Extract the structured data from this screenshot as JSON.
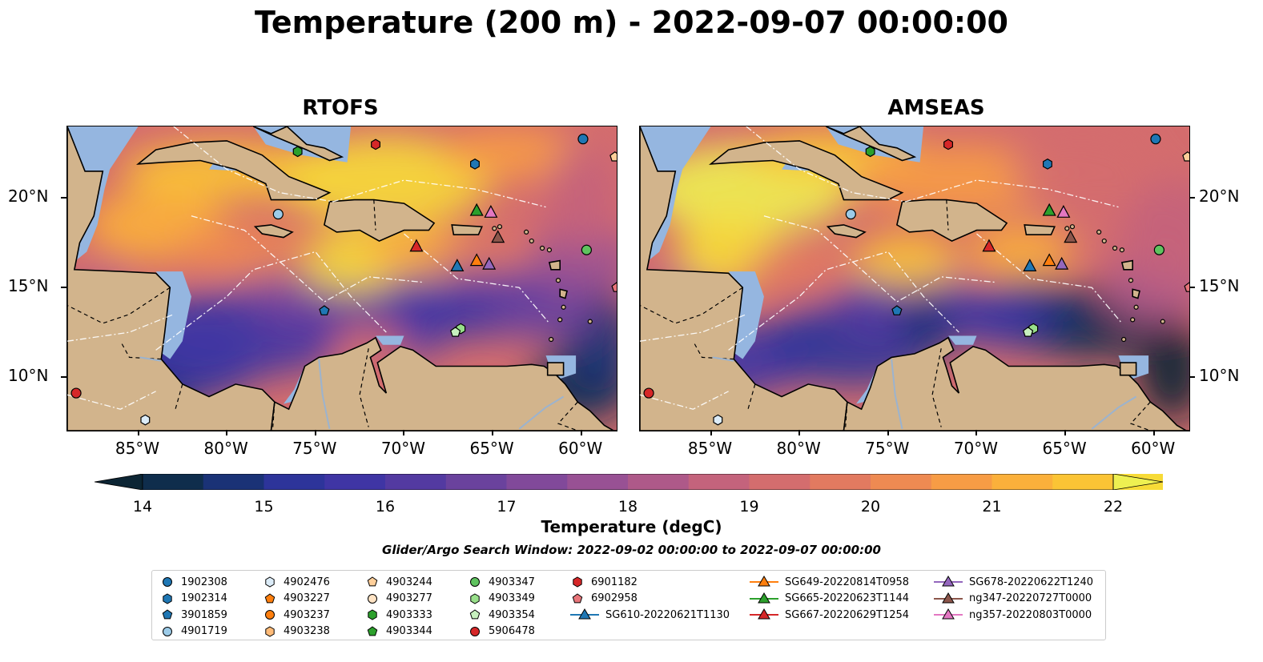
{
  "title": "Temperature (200 m) - 2022-09-07 00:00:00",
  "panels": [
    {
      "title": "RTOFS"
    },
    {
      "title": "AMSEAS"
    }
  ],
  "lon_ticks": [
    "85°W",
    "80°W",
    "75°W",
    "70°W",
    "65°W",
    "60°W"
  ],
  "lat_ticks": [
    "20°N",
    "15°N",
    "10°N"
  ],
  "extent": {
    "lon": [
      -89,
      -58
    ],
    "lat": [
      7,
      24
    ]
  },
  "colorbar": {
    "label": "Temperature (degC)",
    "ticks": [
      "14",
      "15",
      "16",
      "17",
      "18",
      "19",
      "20",
      "21",
      "22"
    ],
    "range": [
      14,
      22
    ],
    "extend": "both",
    "colors": [
      "#0c2534",
      "#0f2d4c",
      "#1a3276",
      "#2d349a",
      "#3f35a4",
      "#533aa1",
      "#6a429d",
      "#81499a",
      "#985194",
      "#ae5989",
      "#c4637c",
      "#d46d6e",
      "#e27a60",
      "#ee8a52",
      "#f79c45",
      "#fbb03b",
      "#fbc435",
      "#f7db37",
      "#eef051"
    ]
  },
  "search_window": "Glider/Argo Search Window: 2022-09-02 00:00:00 to 2022-09-07 00:00:00",
  "legend": [
    [
      {
        "label": "1902308",
        "marker": "circle",
        "color": "#1f77b4"
      },
      {
        "label": "1902314",
        "marker": "hexagon",
        "color": "#1f77b4"
      },
      {
        "label": "3901859",
        "marker": "pentagon",
        "color": "#1f77b4"
      },
      {
        "label": "4901719",
        "marker": "circle",
        "color": "#9ccbe8"
      }
    ],
    [
      {
        "label": "4902476",
        "marker": "hexagon",
        "color": "#dcecf8"
      },
      {
        "label": "4903227",
        "marker": "pentagon",
        "color": "#ff7f0e"
      },
      {
        "label": "4903237",
        "marker": "circle",
        "color": "#ff7f0e"
      },
      {
        "label": "4903238",
        "marker": "hexagon",
        "color": "#ffbb78"
      }
    ],
    [
      {
        "label": "4903244",
        "marker": "pentagon",
        "color": "#ffcf9a"
      },
      {
        "label": "4903277",
        "marker": "circle",
        "color": "#ffe3c4"
      },
      {
        "label": "4903333",
        "marker": "hexagon",
        "color": "#2ca02c"
      },
      {
        "label": "4903344",
        "marker": "pentagon",
        "color": "#2ca02c"
      }
    ],
    [
      {
        "label": "4903347",
        "marker": "circle",
        "color": "#5fc35f"
      },
      {
        "label": "4903349",
        "marker": "hexagon",
        "color": "#98df8a"
      },
      {
        "label": "4903354",
        "marker": "pentagon",
        "color": "#c7f0be"
      },
      {
        "label": "5906478",
        "marker": "circle",
        "color": "#d62728"
      }
    ],
    [
      {
        "label": "6901182",
        "marker": "hexagon",
        "color": "#d62728"
      },
      {
        "label": "6902958",
        "marker": "pentagon",
        "color": "#e8757a"
      },
      {
        "label": "SG610-20220621T1130",
        "marker": "triangle-line",
        "color": "#1f77b4"
      }
    ],
    [
      {
        "label": "SG649-20220814T0958",
        "marker": "triangle-line",
        "color": "#ff7f0e"
      },
      {
        "label": "SG665-20220623T1144",
        "marker": "triangle-line",
        "color": "#2ca02c"
      },
      {
        "label": "SG667-20220629T1254",
        "marker": "triangle-line",
        "color": "#d62728"
      }
    ],
    [
      {
        "label": "SG678-20220622T1240",
        "marker": "triangle-line",
        "color": "#9467bd"
      },
      {
        "label": "ng347-20220727T0000",
        "marker": "triangle-line",
        "color": "#8c564b"
      },
      {
        "label": "ng357-20220803T0000",
        "marker": "triangle-line",
        "color": "#e377c2"
      }
    ]
  ],
  "argo_points": [
    {
      "id": "1902308",
      "lon": -59.9,
      "lat": 23.3,
      "marker": "circle",
      "color": "#1f77b4"
    },
    {
      "id": "1902314",
      "lon": -66.0,
      "lat": 21.9,
      "marker": "hexagon",
      "color": "#1f77b4"
    },
    {
      "id": "3901859",
      "lon": -74.5,
      "lat": 13.7,
      "marker": "pentagon",
      "color": "#1f77b4"
    },
    {
      "id": "4901719",
      "lon": -77.1,
      "lat": 19.1,
      "marker": "circle",
      "color": "#9ccbe8"
    },
    {
      "id": "4902476",
      "lon": -84.6,
      "lat": 7.6,
      "marker": "hexagon",
      "color": "#dcecf8"
    },
    {
      "id": "4903244",
      "lon": -58.1,
      "lat": 22.3,
      "marker": "pentagon",
      "color": "#ffcf9a"
    },
    {
      "id": "4903333",
      "lon": -76.0,
      "lat": 22.6,
      "marker": "hexagon",
      "color": "#2ca02c"
    },
    {
      "id": "4903347",
      "lon": -59.7,
      "lat": 17.1,
      "marker": "circle",
      "color": "#5fc35f"
    },
    {
      "id": "4903349",
      "lon": -66.8,
      "lat": 12.7,
      "marker": "hexagon",
      "color": "#98df8a"
    },
    {
      "id": "4903354",
      "lon": -67.1,
      "lat": 12.5,
      "marker": "pentagon",
      "color": "#c7f0be"
    },
    {
      "id": "5906478",
      "lon": -88.5,
      "lat": 9.1,
      "marker": "circle",
      "color": "#d62728"
    },
    {
      "id": "6901182",
      "lon": -71.6,
      "lat": 23.0,
      "marker": "hexagon",
      "color": "#d62728"
    },
    {
      "id": "6902958",
      "lon": -58.0,
      "lat": 15.0,
      "marker": "pentagon",
      "color": "#e8757a"
    }
  ],
  "glider_points": [
    {
      "id": "SG610-20220621T1130",
      "lon": -67.0,
      "lat": 16.2,
      "color": "#1f77b4"
    },
    {
      "id": "SG649-20220814T0958",
      "lon": -65.9,
      "lat": 16.5,
      "color": "#ff7f0e"
    },
    {
      "id": "SG665-20220623T1144",
      "lon": -65.9,
      "lat": 19.3,
      "color": "#2ca02c"
    },
    {
      "id": "SG667-20220629T1254",
      "lon": -69.3,
      "lat": 17.3,
      "color": "#d62728"
    },
    {
      "id": "SG678-20220622T1240",
      "lon": -65.2,
      "lat": 16.3,
      "color": "#9467bd"
    },
    {
      "id": "ng347-20220727T0000",
      "lon": -64.7,
      "lat": 17.8,
      "color": "#8c564b"
    },
    {
      "id": "ng357-20220803T0000",
      "lon": -65.1,
      "lat": 19.2,
      "color": "#e377c2"
    }
  ]
}
